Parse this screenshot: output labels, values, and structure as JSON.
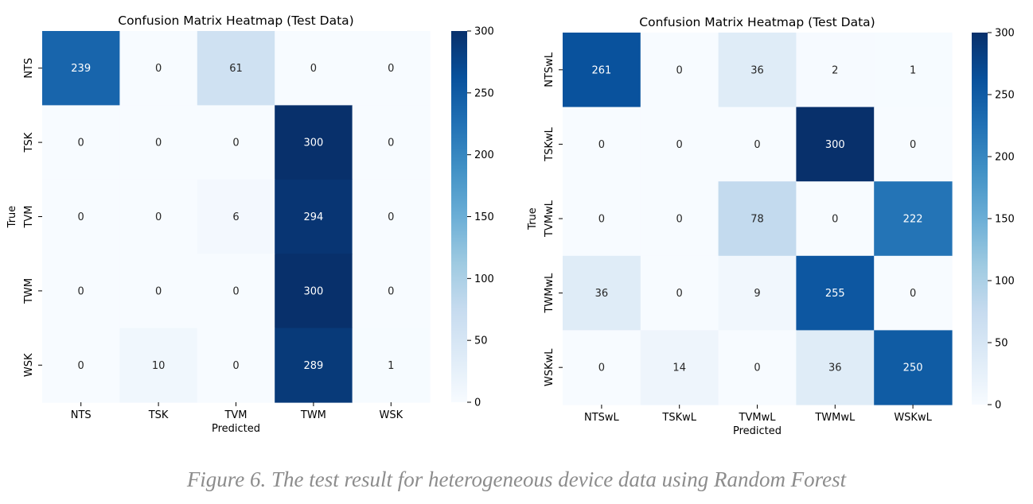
{
  "caption": "Figure 6. The test result for heterogeneous device data using Random Forest",
  "colormap": [
    "#f7fbff",
    "#deebf7",
    "#c6dbef",
    "#9ecae1",
    "#6baed6",
    "#4292c6",
    "#2171b5",
    "#08519c",
    "#08306b"
  ],
  "chart_data": [
    {
      "type": "heatmap",
      "title": "Confusion Matrix Heatmap (Test Data)",
      "xlabel": "Predicted",
      "ylabel": "True",
      "x": [
        "NTS",
        "TSK",
        "TVM",
        "TWM",
        "WSK"
      ],
      "y": [
        "NTS",
        "TSK",
        "TVM",
        "TWM",
        "WSK"
      ],
      "values": [
        [
          239,
          0,
          61,
          0,
          0
        ],
        [
          0,
          0,
          0,
          300,
          0
        ],
        [
          0,
          0,
          6,
          294,
          0
        ],
        [
          0,
          0,
          0,
          300,
          0
        ],
        [
          0,
          10,
          0,
          289,
          1
        ]
      ],
      "vmin": 0,
      "vmax": 300,
      "colorbar_ticks": [
        0,
        50,
        100,
        150,
        200,
        250,
        300
      ]
    },
    {
      "type": "heatmap",
      "title": "Confusion Matrix Heatmap (Test Data)",
      "xlabel": "Predicted",
      "ylabel": "True",
      "x": [
        "NTSwL",
        "TSKwL",
        "TVMwL",
        "TWMwL",
        "WSKwL"
      ],
      "y": [
        "NTSwL",
        "TSKwL",
        "TVMwL",
        "TWMwL",
        "WSKwL"
      ],
      "values": [
        [
          261,
          0,
          36,
          2,
          1
        ],
        [
          0,
          0,
          0,
          300,
          0
        ],
        [
          0,
          0,
          78,
          0,
          222
        ],
        [
          36,
          0,
          9,
          255,
          0
        ],
        [
          0,
          14,
          0,
          36,
          250
        ]
      ],
      "vmin": 0,
      "vmax": 300,
      "colorbar_ticks": [
        0,
        50,
        100,
        150,
        200,
        250,
        300
      ]
    }
  ]
}
